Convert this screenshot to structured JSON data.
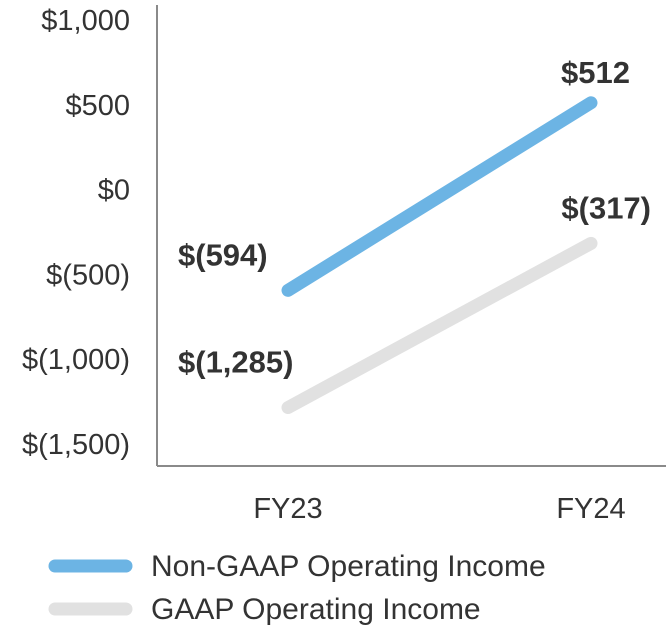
{
  "chart_data": {
    "type": "line",
    "x": [
      "FY23",
      "FY24"
    ],
    "series": [
      {
        "name": "Non-GAAP Operating Income",
        "values": [
          -594,
          512
        ],
        "labels": [
          "$(594)",
          "$512"
        ],
        "color": "#6cb4e4"
      },
      {
        "name": "GAAP Operating Income",
        "values": [
          -1285,
          -317
        ],
        "labels": [
          "$(1,285)",
          "$(317)"
        ],
        "color": "#e1e1e1"
      }
    ],
    "y_ticks": [
      {
        "value": 1000,
        "label": "$1,000"
      },
      {
        "value": 500,
        "label": "$500"
      },
      {
        "value": 0,
        "label": "$0"
      },
      {
        "value": -500,
        "label": "$(500)"
      },
      {
        "value": -1000,
        "label": "$(1,000)"
      },
      {
        "value": -1500,
        "label": "$(1,500)"
      }
    ],
    "ylim": [
      -1650,
      1050
    ],
    "grid": false,
    "legend_position": "bottom-left",
    "axis_color": "#8a8a8a",
    "text_color": "#333333"
  }
}
